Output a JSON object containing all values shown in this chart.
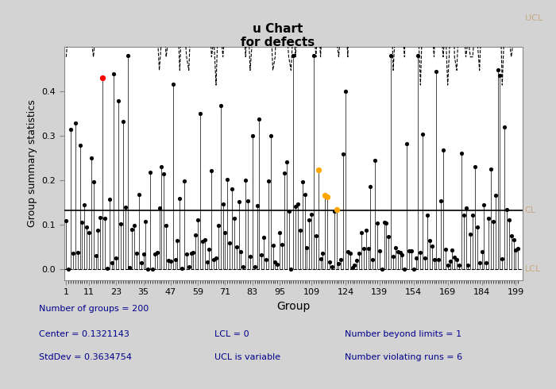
{
  "title_line1": "u Chart",
  "title_line2": "for defects",
  "CL": 0.1321143,
  "ylabel": "Group summary statistics",
  "xlabel": "Group",
  "ylim": [
    -0.025,
    0.5
  ],
  "xticks": [
    1,
    11,
    23,
    35,
    47,
    59,
    71,
    83,
    95,
    109,
    124,
    139,
    154,
    169,
    184,
    199
  ],
  "background_color": "#d3d3d3",
  "plot_bg_color": "#ffffff",
  "data_color": "#000000",
  "red_color": "#ff0000",
  "orange_color": "#ffa500",
  "label_color": "#c8a882",
  "stats_color": "#00008b",
  "n_groups": 200,
  "center_str": "0.1321143",
  "stddev_str": "0.3634754",
  "seed": 77,
  "red_indices": [
    16
  ],
  "red_value": 0.43,
  "orange_indices": [
    111,
    114,
    115,
    119
  ],
  "orange_values": [
    0.222,
    0.165,
    0.163,
    0.133
  ],
  "zero_indices": [
    1,
    38,
    99,
    139,
    149,
    153
  ]
}
